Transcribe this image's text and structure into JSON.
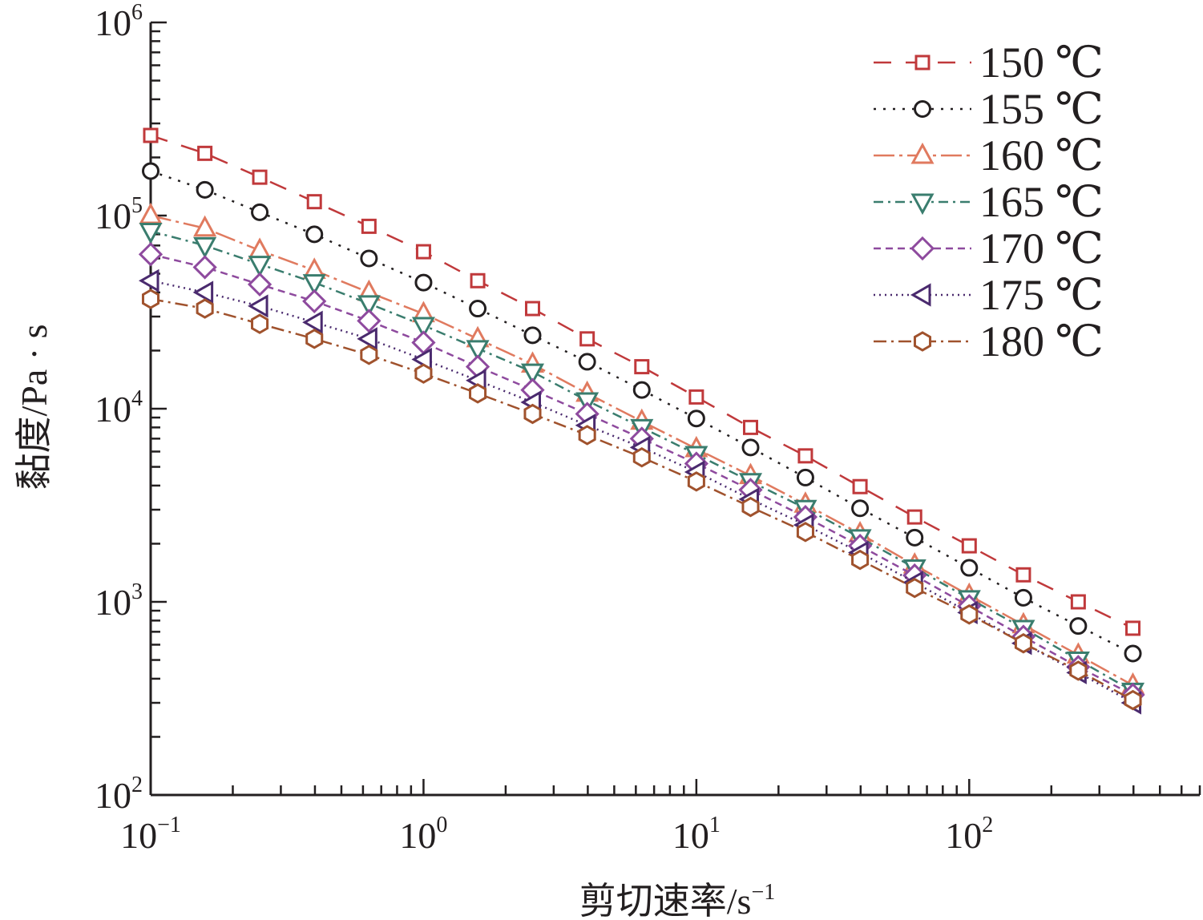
{
  "chart_data": {
    "type": "line",
    "xscale": "log",
    "yscale": "log",
    "xlim": [
      0.1,
      700
    ],
    "ylim": [
      100,
      1000000
    ],
    "xlabel": "剪切速率/s",
    "xlabel_sup": "−1",
    "ylabel": "黏度/Pa · s",
    "x_ticks": [
      {
        "base": "10",
        "exp": "−1"
      },
      {
        "base": "10",
        "exp": "0"
      },
      {
        "base": "10",
        "exp": "1"
      },
      {
        "base": "10",
        "exp": "2"
      }
    ],
    "y_ticks": [
      {
        "base": "10",
        "exp": "2"
      },
      {
        "base": "10",
        "exp": "3"
      },
      {
        "base": "10",
        "exp": "4"
      },
      {
        "base": "10",
        "exp": "5"
      },
      {
        "base": "10",
        "exp": "6"
      }
    ],
    "x": [
      0.1,
      0.158,
      0.251,
      0.398,
      0.631,
      1,
      1.58,
      2.51,
      3.98,
      6.31,
      10,
      15.8,
      25.1,
      39.8,
      63.1,
      100,
      158,
      251,
      398
    ],
    "legend_position": "top-right",
    "grid": false,
    "series": [
      {
        "name": "150 ℃",
        "color": "#c0393b",
        "marker": "square",
        "dash": "22,18",
        "values": [
          260000,
          210000,
          158000,
          118000,
          88000,
          65000,
          46000,
          33000,
          23000,
          16500,
          11500,
          8000,
          5700,
          3950,
          2750,
          1950,
          1380,
          1000,
          730
        ]
      },
      {
        "name": "155 ℃",
        "color": "#231f20",
        "marker": "circle",
        "dash": "3,9",
        "values": [
          170000,
          136000,
          104000,
          80000,
          60000,
          45000,
          33000,
          24000,
          17500,
          12500,
          8900,
          6300,
          4400,
          3050,
          2150,
          1500,
          1050,
          750,
          540
        ]
      },
      {
        "name": "160 ℃",
        "color": "#e07a5f",
        "marker": "triangle-up",
        "dash": "26,6,4,6",
        "values": [
          100000,
          86000,
          66000,
          52000,
          40000,
          31000,
          23000,
          17000,
          12000,
          8600,
          6200,
          4500,
          3200,
          2250,
          1550,
          1080,
          760,
          530,
          370
        ]
      },
      {
        "name": "165 ℃",
        "color": "#3a7d6e",
        "marker": "triangle-down",
        "dash": "12,6,3,6",
        "values": [
          83000,
          70000,
          56000,
          45000,
          35000,
          27000,
          20500,
          15500,
          11000,
          8000,
          5800,
          4200,
          3050,
          2150,
          1500,
          1040,
          730,
          500,
          345
        ]
      },
      {
        "name": "170 ℃",
        "color": "#8e4a9e",
        "marker": "diamond",
        "dash": "9,6",
        "values": [
          63000,
          54000,
          44000,
          36000,
          28500,
          22000,
          16500,
          12500,
          9400,
          7000,
          5200,
          3800,
          2750,
          1950,
          1370,
          950,
          660,
          460,
          330
        ]
      },
      {
        "name": "175 ℃",
        "color": "#4a2a6e",
        "marker": "triangle-left",
        "dash": "2,5",
        "values": [
          46000,
          40000,
          34000,
          28000,
          23000,
          18000,
          14000,
          10800,
          8200,
          6300,
          4700,
          3400,
          2500,
          1800,
          1260,
          880,
          610,
          430,
          300
        ]
      },
      {
        "name": "180 ℃",
        "color": "#a0522d",
        "marker": "hexagon",
        "dash": "16,6,3,6",
        "values": [
          37000,
          33000,
          27500,
          23000,
          19000,
          15200,
          12000,
          9400,
          7300,
          5600,
          4200,
          3100,
          2300,
          1650,
          1180,
          860,
          610,
          440,
          310
        ]
      }
    ]
  }
}
